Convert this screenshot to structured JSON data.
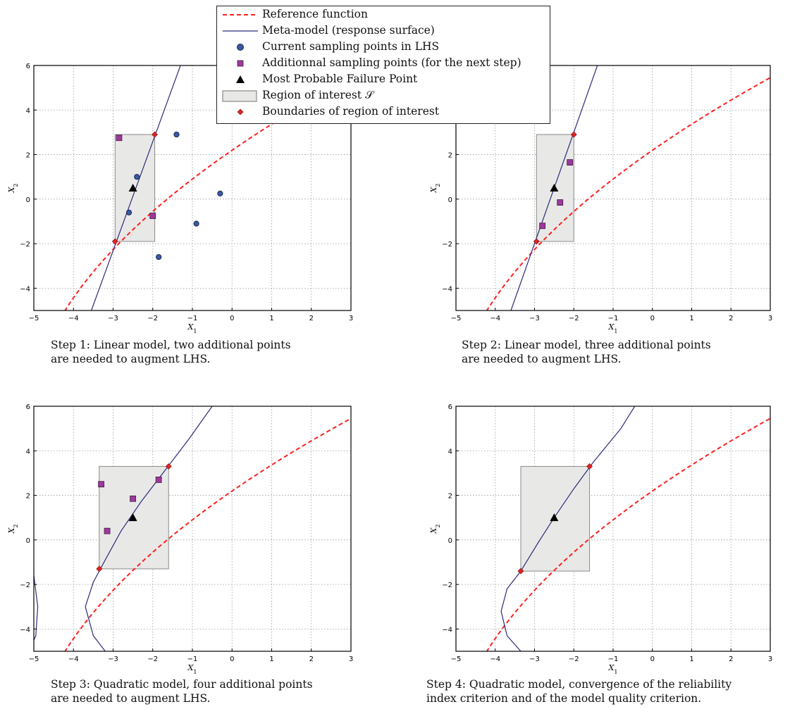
{
  "legend": {
    "items": [
      {
        "key": "reference",
        "label": "Reference function",
        "marker": "dashed-line",
        "color": "#ff2020"
      },
      {
        "key": "metamodel",
        "label": "Meta-model (response surface)",
        "marker": "solid-line",
        "color": "#2b2b7a"
      },
      {
        "key": "lhs",
        "label": "Current sampling points in LHS",
        "marker": "circle",
        "color": "#3a5aa0"
      },
      {
        "key": "additional",
        "label": "Additionnal sampling points (for the next step)",
        "marker": "square",
        "color": "#9b3b9b"
      },
      {
        "key": "mpfp",
        "label": "Most Probable Failure Point",
        "marker": "triangle",
        "color": "#000000"
      },
      {
        "key": "region",
        "label": "Region of interest 𝒮",
        "marker": "rect",
        "color": "#e8e9e6"
      },
      {
        "key": "boundaries",
        "label": "Boundaries of region of interest",
        "marker": "diamond",
        "color": "#e02424"
      }
    ]
  },
  "chart_data": [
    {
      "type": "scatter",
      "caption": [
        "Step 1: Linear model, two additional points",
        "are needed to augment LHS."
      ],
      "xlabel": "X1",
      "ylabel": "X2",
      "xlim": [
        -5,
        3
      ],
      "ylim": [
        -5,
        6
      ],
      "xticks": [
        -5,
        -4,
        -3,
        -2,
        -1,
        0,
        1,
        2,
        3
      ],
      "yticks": [
        -4,
        -2,
        0,
        2,
        4,
        6
      ],
      "grid": true,
      "region": {
        "x": [
          -2.95,
          -1.95
        ],
        "y": [
          -1.9,
          2.9
        ]
      },
      "metamodel": {
        "kind": "line",
        "points": [
          [
            -3.55,
            -5.0
          ],
          [
            -1.3,
            6.0
          ]
        ]
      },
      "lhs_points": [
        [
          -2.4,
          1.0
        ],
        [
          -2.6,
          -0.6
        ],
        [
          -1.4,
          2.9
        ],
        [
          -0.3,
          0.25
        ],
        [
          -0.9,
          -1.1
        ],
        [
          -1.85,
          -2.6
        ]
      ],
      "additional_points": [
        [
          -2.85,
          2.75
        ],
        [
          -2.0,
          -0.75
        ]
      ],
      "mpfp": [
        -2.5,
        0.5
      ],
      "boundaries": [
        [
          -2.95,
          -1.9
        ],
        [
          -1.95,
          2.9
        ]
      ]
    },
    {
      "type": "scatter",
      "caption": [
        "Step 2: Linear model, three additional points",
        "are needed to augment LHS."
      ],
      "xlabel": "X1",
      "ylabel": "X2",
      "xlim": [
        -5,
        3
      ],
      "ylim": [
        -5,
        6
      ],
      "xticks": [
        -5,
        -4,
        -3,
        -2,
        -1,
        0,
        1,
        2,
        3
      ],
      "yticks": [
        -4,
        -2,
        0,
        2,
        4,
        6
      ],
      "grid": true,
      "region": {
        "x": [
          -2.95,
          -2.0
        ],
        "y": [
          -1.9,
          2.9
        ]
      },
      "metamodel": {
        "kind": "line",
        "points": [
          [
            -3.6,
            -5.0
          ],
          [
            -1.4,
            6.0
          ]
        ]
      },
      "lhs_points": [],
      "additional_points": [
        [
          -2.1,
          1.65
        ],
        [
          -2.35,
          -0.15
        ],
        [
          -2.8,
          -1.2
        ]
      ],
      "mpfp": [
        -2.5,
        0.5
      ],
      "boundaries": [
        [
          -2.95,
          -1.9
        ],
        [
          -2.0,
          2.9
        ]
      ]
    },
    {
      "type": "scatter",
      "caption": [
        "Step 3: Quadratic model, four additional points",
        "are needed to augment LHS."
      ],
      "xlabel": "X1",
      "ylabel": "X2",
      "xlim": [
        -5,
        3
      ],
      "ylim": [
        -5,
        6
      ],
      "xticks": [
        -5,
        -4,
        -3,
        -2,
        -1,
        0,
        1,
        2,
        3
      ],
      "yticks": [
        -4,
        -2,
        0,
        2,
        4,
        6
      ],
      "grid": true,
      "region": {
        "x": [
          -3.35,
          -1.6
        ],
        "y": [
          -1.3,
          3.3
        ]
      },
      "metamodel": {
        "kind": "quadratic",
        "points": [
          [
            -5.0,
            -1.6
          ],
          [
            -4.9,
            -3.0
          ],
          [
            -4.95,
            -4.3
          ],
          [
            -5.0,
            -4.5
          ]
        ],
        "branch": [
          [
            -3.2,
            -5.0
          ],
          [
            -3.5,
            -4.3
          ],
          [
            -3.7,
            -3.0
          ],
          [
            -3.5,
            -1.9
          ],
          [
            -3.2,
            -0.9
          ],
          [
            -2.8,
            0.4
          ],
          [
            -2.3,
            1.7
          ],
          [
            -1.7,
            3.1
          ],
          [
            -1.1,
            4.5
          ],
          [
            -0.5,
            6.0
          ]
        ]
      },
      "lhs_points": [],
      "additional_points": [
        [
          -3.3,
          2.5
        ],
        [
          -3.15,
          0.4
        ],
        [
          -2.5,
          1.85
        ],
        [
          -1.85,
          2.7
        ]
      ],
      "mpfp": [
        -2.5,
        1.0
      ],
      "boundaries": [
        [
          -3.35,
          -1.3
        ],
        [
          -1.6,
          3.3
        ]
      ]
    },
    {
      "type": "scatter",
      "caption": [
        "Step 4: Quadratic model, convergence of the reliability",
        "index criterion and of the model quality criterion."
      ],
      "xlabel": "X1",
      "ylabel": "X2",
      "xlim": [
        -5,
        3
      ],
      "ylim": [
        -5,
        6
      ],
      "xticks": [
        -5,
        -4,
        -3,
        -2,
        -1,
        0,
        1,
        2,
        3
      ],
      "yticks": [
        -4,
        -2,
        0,
        2,
        4,
        6
      ],
      "grid": true,
      "region": {
        "x": [
          -3.35,
          -1.6
        ],
        "y": [
          -1.4,
          3.3
        ]
      },
      "metamodel": {
        "kind": "quadratic",
        "branch": [
          [
            -3.35,
            -5.0
          ],
          [
            -3.7,
            -4.3
          ],
          [
            -3.85,
            -3.2
          ],
          [
            -3.7,
            -2.2
          ],
          [
            -3.35,
            -1.4
          ],
          [
            -2.9,
            -0.1
          ],
          [
            -2.5,
            1.0
          ],
          [
            -2.0,
            2.3
          ],
          [
            -1.5,
            3.5
          ],
          [
            -0.8,
            5.0
          ],
          [
            -0.45,
            6.0
          ]
        ]
      },
      "lhs_points": [],
      "additional_points": [],
      "mpfp": [
        -2.5,
        1.0
      ],
      "boundaries": [
        [
          -3.35,
          -1.4
        ],
        [
          -1.6,
          3.3
        ]
      ]
    }
  ]
}
